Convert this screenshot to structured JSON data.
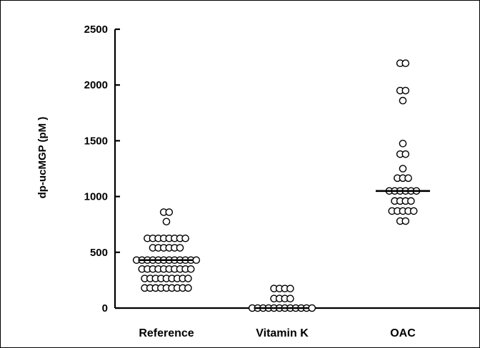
{
  "chart_data": {
    "type": "scatter",
    "title": "",
    "xlabel": "",
    "ylabel": "dp-ucMGP (pM )",
    "ylim": [
      0,
      2500
    ],
    "yticks": [
      0,
      500,
      1000,
      1500,
      2000,
      2500
    ],
    "categories": [
      "Reference",
      "Vitamin K",
      "OAC"
    ],
    "grid": false,
    "legend": "none",
    "series": [
      {
        "category": "Reference",
        "median": 430,
        "points": [
          {
            "y": 860,
            "n": 2
          },
          {
            "y": 775,
            "n": 1
          },
          {
            "y": 625,
            "n": 8
          },
          {
            "y": 540,
            "n": 6
          },
          {
            "y": 430,
            "n": 12
          },
          {
            "y": 350,
            "n": 10
          },
          {
            "y": 265,
            "n": 9
          },
          {
            "y": 180,
            "n": 9
          }
        ]
      },
      {
        "category": "Vitamin K",
        "median": 0,
        "points": [
          {
            "y": 175,
            "n": 4
          },
          {
            "y": 85,
            "n": 4
          },
          {
            "y": 0,
            "n": 12
          }
        ]
      },
      {
        "category": "OAC",
        "median": 1050,
        "points": [
          {
            "y": 2195,
            "n": 2
          },
          {
            "y": 1950,
            "n": 2
          },
          {
            "y": 1860,
            "n": 1
          },
          {
            "y": 1475,
            "n": 1
          },
          {
            "y": 1380,
            "n": 2
          },
          {
            "y": 1250,
            "n": 1
          },
          {
            "y": 1165,
            "n": 3
          },
          {
            "y": 1050,
            "n": 6
          },
          {
            "y": 960,
            "n": 4
          },
          {
            "y": 870,
            "n": 5
          },
          {
            "y": 780,
            "n": 2
          }
        ]
      }
    ]
  }
}
